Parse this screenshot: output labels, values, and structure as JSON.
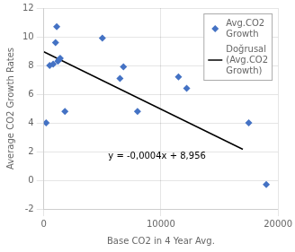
{
  "chart_data": {
    "type": "scatter",
    "xlabel": "Base CO2 in 4 Year Avg.",
    "ylabel": "Average CO2 Growth Rates",
    "series": [
      {
        "name": "Avg.CO2\nGrowth",
        "type": "scatter",
        "color": "#4472C4",
        "marker": "diamond",
        "x": [
          200,
          500,
          800,
          1000,
          1100,
          1200,
          1300,
          1400,
          1800,
          5000,
          6500,
          6800,
          11500,
          12200,
          8000,
          19000,
          17500
        ],
        "values": [
          4.0,
          8.0,
          8.1,
          9.6,
          10.7,
          8.3,
          8.4,
          8.5,
          4.8,
          9.9,
          7.1,
          7.9,
          7.2,
          6.4,
          4.8,
          -0.3,
          4.0
        ]
      },
      {
        "name": "Doğrusal\n(Avg.CO2\nGrowth)",
        "type": "line",
        "color": "#000000",
        "line_style": "solid",
        "x": [
          0,
          17000
        ],
        "values": [
          8.956,
          2.156
        ]
      }
    ],
    "annotations": [
      {
        "text": "y = -0,0004x + 8,956",
        "x": 5500,
        "y": 1.5
      }
    ],
    "xlim": [
      0,
      20000
    ],
    "ylim": [
      -2,
      12
    ],
    "xticks": [
      0,
      10000,
      20000
    ],
    "yticks": [
      -2,
      0,
      2,
      4,
      6,
      8,
      10,
      12
    ],
    "grid": true,
    "legend": "upper right"
  }
}
